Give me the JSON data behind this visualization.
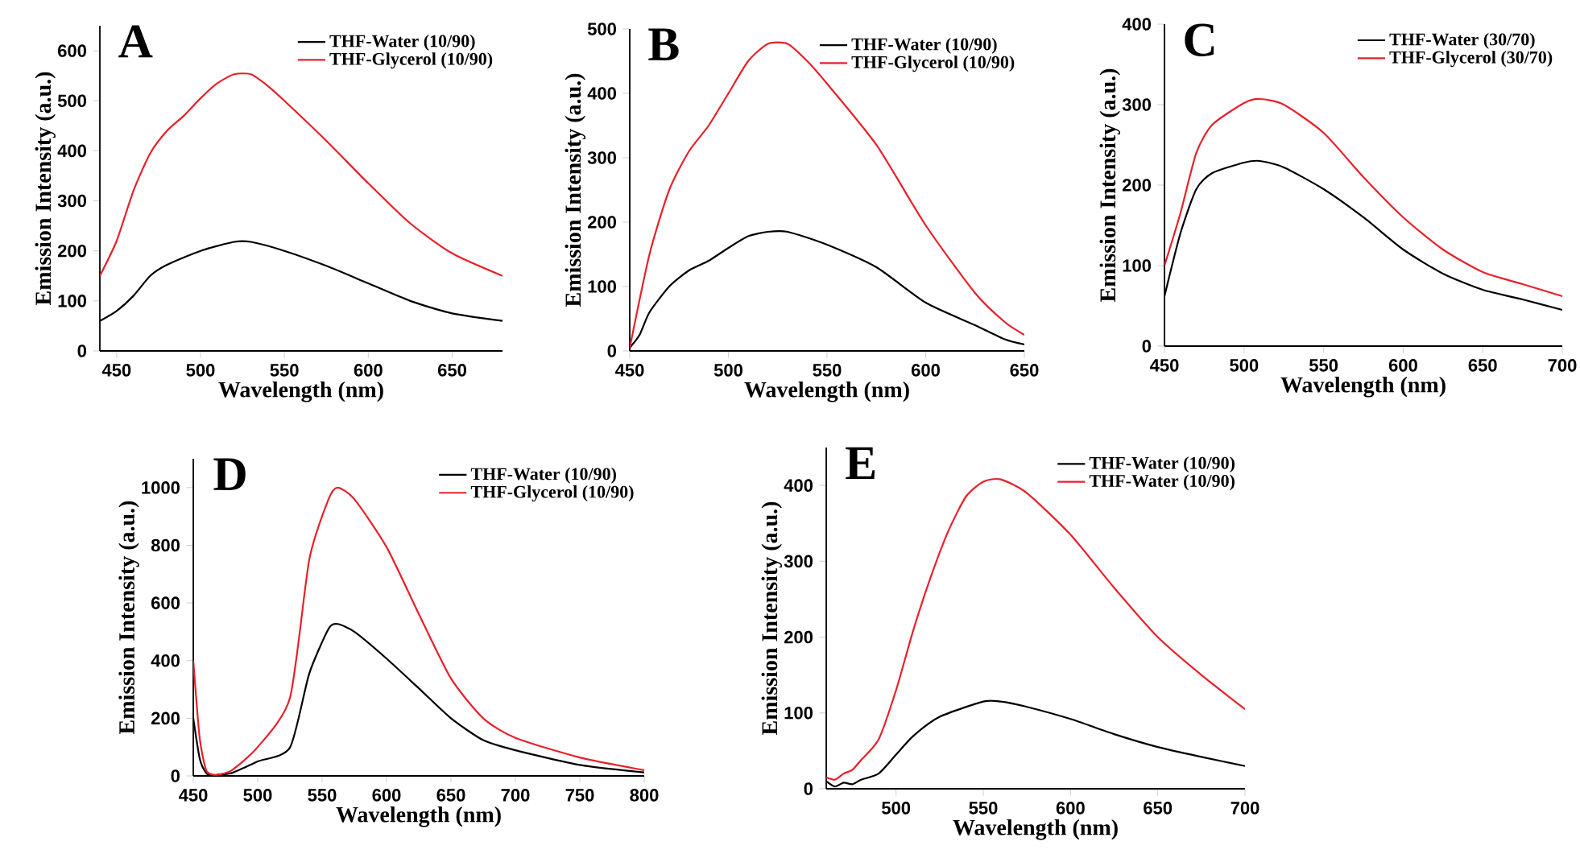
{
  "chart_data": [
    {
      "type": "line",
      "title": "A",
      "xlabel": "Wavelength (nm)",
      "ylabel": "Emission Intensity (a.u.)",
      "xlim": [
        440,
        680
      ],
      "ylim": [
        0,
        650
      ],
      "xticks": [
        450,
        500,
        550,
        600,
        650
      ],
      "yticks": [
        0,
        100,
        200,
        300,
        400,
        500,
        600
      ],
      "legend": "top right",
      "series": [
        {
          "name": "THF-Water (10/90)",
          "color": "#000000",
          "x": [
            440,
            450,
            460,
            470,
            480,
            500,
            520,
            530,
            550,
            575,
            600,
            625,
            650,
            680
          ],
          "values": [
            60,
            80,
            110,
            150,
            172,
            200,
            218,
            218,
            200,
            170,
            135,
            100,
            75,
            60
          ]
        },
        {
          "name": "THF-Glycerol (10/90)",
          "color": "#e8202a",
          "x": [
            440,
            450,
            460,
            470,
            480,
            490,
            500,
            510,
            520,
            530,
            540,
            550,
            575,
            600,
            625,
            650,
            680
          ],
          "values": [
            150,
            220,
            320,
            395,
            440,
            470,
            505,
            535,
            553,
            553,
            530,
            500,
            420,
            335,
            255,
            195,
            150
          ]
        }
      ]
    },
    {
      "type": "line",
      "title": "B",
      "xlabel": "Wavelength (nm)",
      "ylabel": "Emission Intensity (a.u.)",
      "xlim": [
        450,
        650
      ],
      "ylim": [
        0,
        500
      ],
      "xticks": [
        450,
        500,
        550,
        600,
        650
      ],
      "yticks": [
        0,
        100,
        200,
        300,
        400,
        500
      ],
      "legend": "top right",
      "series": [
        {
          "name": "THF-Water (10/90)",
          "color": "#000000",
          "x": [
            450,
            455,
            460,
            470,
            480,
            490,
            500,
            510,
            520,
            530,
            550,
            575,
            600,
            625,
            640,
            650
          ],
          "values": [
            5,
            25,
            60,
            100,
            125,
            140,
            160,
            178,
            185,
            185,
            165,
            130,
            75,
            40,
            18,
            10
          ]
        },
        {
          "name": "THF-Glycerol (10/90)",
          "color": "#e8202a",
          "x": [
            450,
            460,
            470,
            480,
            490,
            500,
            510,
            520,
            530,
            540,
            550,
            575,
            600,
            625,
            640,
            650
          ],
          "values": [
            5,
            150,
            250,
            310,
            350,
            400,
            450,
            477,
            477,
            450,
            415,
            320,
            195,
            90,
            45,
            25
          ]
        }
      ]
    },
    {
      "type": "line",
      "title": "C",
      "xlabel": "Wavelength (nm)",
      "ylabel": "Emission Intensity (a.u.)",
      "xlim": [
        450,
        700
      ],
      "ylim": [
        0,
        400
      ],
      "xticks": [
        450,
        500,
        550,
        600,
        650,
        700
      ],
      "yticks": [
        0,
        100,
        200,
        300,
        400
      ],
      "legend": "top right",
      "series": [
        {
          "name": "THF-Water (30/70)",
          "color": "#000000",
          "x": [
            450,
            460,
            470,
            480,
            500,
            510,
            525,
            550,
            575,
            600,
            625,
            650,
            675,
            700
          ],
          "values": [
            62,
            140,
            195,
            215,
            228,
            230,
            222,
            195,
            160,
            120,
            90,
            70,
            58,
            45
          ]
        },
        {
          "name": "THF-Glycerol (30/70)",
          "color": "#e8202a",
          "x": [
            450,
            460,
            470,
            480,
            500,
            510,
            525,
            550,
            575,
            600,
            625,
            650,
            675,
            700
          ],
          "values": [
            100,
            165,
            240,
            275,
            302,
            307,
            300,
            265,
            210,
            160,
            120,
            92,
            77,
            62
          ]
        }
      ]
    },
    {
      "type": "line",
      "title": "D",
      "xlabel": "Wavelength (nm)",
      "ylabel": "Emission Intensity (a.u.)",
      "xlim": [
        450,
        800
      ],
      "ylim": [
        0,
        1100
      ],
      "xticks": [
        450,
        500,
        550,
        600,
        650,
        700,
        750,
        800
      ],
      "yticks": [
        0,
        200,
        400,
        600,
        800,
        1000
      ],
      "legend": "top right",
      "series": [
        {
          "name": "THF-Water (10/90)",
          "color": "#000000",
          "x": [
            450,
            455,
            460,
            465,
            470,
            480,
            500,
            525,
            540,
            555,
            562,
            575,
            600,
            625,
            650,
            675,
            700,
            750,
            800
          ],
          "values": [
            200,
            60,
            10,
            0,
            5,
            10,
            50,
            98,
            355,
            510,
            527,
            500,
            407,
            304,
            200,
            124,
            89,
            38,
            12
          ]
        },
        {
          "name": "THF-Glycerol (10/90)",
          "color": "#e8202a",
          "x": [
            450,
            455,
            460,
            465,
            470,
            480,
            500,
            525,
            540,
            555,
            562,
            575,
            600,
            625,
            650,
            675,
            700,
            750,
            800
          ],
          "values": [
            400,
            130,
            20,
            5,
            5,
            20,
            100,
            270,
            750,
            960,
            1000,
            960,
            794,
            562,
            338,
            200,
            132,
            64,
            20
          ]
        }
      ]
    },
    {
      "type": "line",
      "title": "E",
      "xlabel": "Wavelength (nm)",
      "ylabel": "Emission Intensity (a.u.)",
      "xlim": [
        460,
        700
      ],
      "ylim": [
        0,
        450
      ],
      "xticks": [
        500,
        550,
        600,
        650,
        700
      ],
      "yticks": [
        0,
        100,
        200,
        300,
        400
      ],
      "legend": "top right",
      "series": [
        {
          "name": "THF-Water (10/90)",
          "color": "#000000",
          "x": [
            460,
            465,
            470,
            475,
            480,
            490,
            500,
            510,
            525,
            550,
            560,
            575,
            600,
            625,
            650,
            675,
            700
          ],
          "values": [
            10,
            3,
            8,
            6,
            12,
            20,
            45,
            70,
            95,
            115,
            115,
            108,
            92,
            72,
            55,
            42,
            30
          ]
        },
        {
          "name": "THF-Water (10/90)",
          "color": "#e8202a",
          "x": [
            460,
            465,
            470,
            475,
            480,
            490,
            500,
            510,
            520,
            530,
            540,
            550,
            560,
            575,
            600,
            625,
            650,
            675,
            700
          ],
          "values": [
            15,
            12,
            20,
            25,
            38,
            65,
            130,
            210,
            280,
            340,
            385,
            405,
            408,
            390,
            335,
            265,
            200,
            150,
            105
          ]
        }
      ]
    }
  ]
}
